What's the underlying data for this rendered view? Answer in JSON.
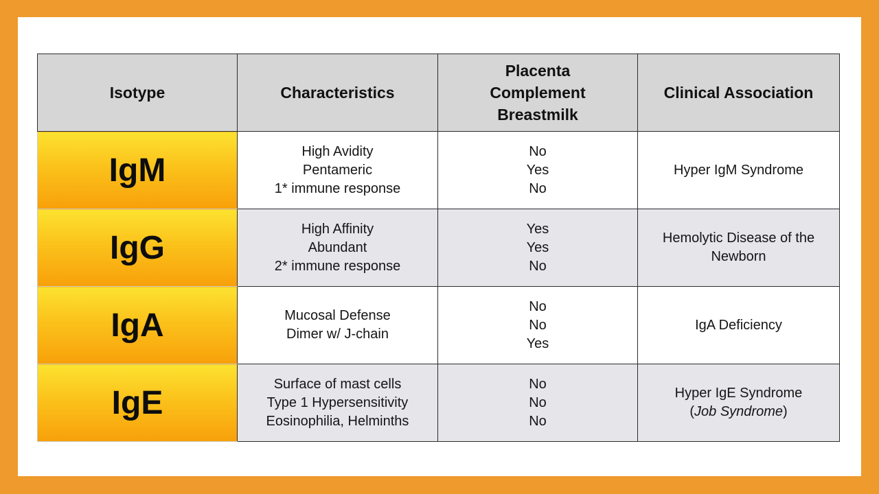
{
  "table": {
    "headers": {
      "isotype": "Isotype",
      "characteristics": "Characteristics",
      "transfer": [
        "Placenta",
        "Complement",
        "Breastmilk"
      ],
      "clinical": "Clinical Association"
    },
    "rows": [
      {
        "isotype": "IgM",
        "characteristics": [
          "High Avidity",
          "Pentameric",
          "1* immune response"
        ],
        "transfer": [
          "No",
          "Yes",
          "No"
        ],
        "clinical": "Hyper IgM Syndrome"
      },
      {
        "isotype": "IgG",
        "characteristics": [
          "High Affinity",
          "Abundant",
          "2* immune response"
        ],
        "transfer": [
          "Yes",
          "Yes",
          "No"
        ],
        "clinical": "Hemolytic Disease of the Newborn"
      },
      {
        "isotype": "IgA",
        "characteristics": [
          "Mucosal Defense",
          "Dimer w/ J-chain"
        ],
        "transfer": [
          "No",
          "No",
          "Yes"
        ],
        "clinical": "IgA Deficiency"
      },
      {
        "isotype": "IgE",
        "characteristics": [
          "Surface of mast cells",
          "Type 1 Hypersensitivity",
          "Eosinophilia, Helminths"
        ],
        "transfer": [
          "No",
          "No",
          "No"
        ],
        "clinical_line1": "Hyper IgE Syndrome",
        "clinical_line2_open": "(",
        "clinical_line2_italic": "Job Syndrome",
        "clinical_line2_close": ")"
      }
    ]
  },
  "colors": {
    "frame": "#EE9A2C",
    "header_bg": "#D6D6D6",
    "alt_row_bg": "#E5E5EA",
    "isotype_gradient_top": "#FCE230",
    "isotype_gradient_bottom": "#F8A00A"
  }
}
